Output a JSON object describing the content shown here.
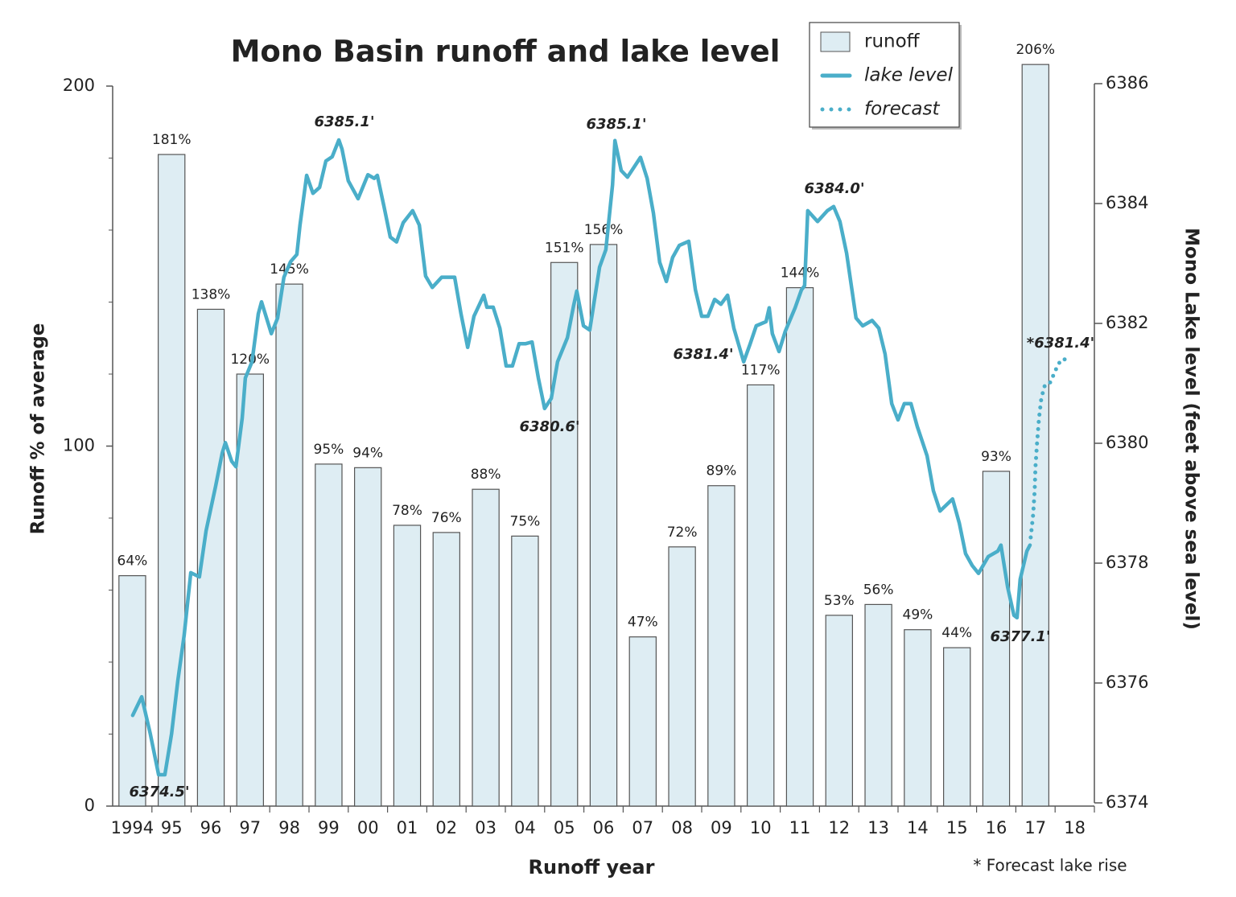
{
  "chart_data": {
    "type": "bar",
    "title": "Mono Basin runoff and lake level",
    "xlabel": "Runoff year",
    "ylabel": "Runoff % of average",
    "y2label": "Mono Lake level (feet above sea level)",
    "footnote": "* Forecast lake rise",
    "categories": [
      "1994",
      "95",
      "96",
      "97",
      "98",
      "99",
      "00",
      "01",
      "02",
      "03",
      "04",
      "05",
      "06",
      "07",
      "08",
      "09",
      "10",
      "11",
      "12",
      "13",
      "14",
      "15",
      "16",
      "17",
      "18"
    ],
    "ylim": [
      0,
      200
    ],
    "yticks": [
      0,
      100,
      200
    ],
    "yminorticks": [
      20,
      40,
      60,
      80,
      120,
      140,
      160,
      180
    ],
    "y2lim": [
      6374,
      6386
    ],
    "y2ticks": [
      6374,
      6376,
      6378,
      6380,
      6382,
      6384,
      6386
    ],
    "xlim": [
      1993.5,
      2018.5
    ],
    "series": [
      {
        "name": "runoff",
        "type": "bar",
        "color": "#deedf3",
        "values": [
          64,
          181,
          138,
          120,
          145,
          95,
          94,
          78,
          76,
          88,
          75,
          151,
          156,
          47,
          72,
          89,
          117,
          144,
          53,
          56,
          49,
          44,
          93,
          206,
          null
        ],
        "value_labels": [
          "64%",
          "181%",
          "138%",
          "120%",
          "145%",
          "95%",
          "94%",
          "78%",
          "76%",
          "88%",
          "75%",
          "151%",
          "156%",
          "47%",
          "72%",
          "89%",
          "117%",
          "144%",
          "53%",
          "56%",
          "49%",
          "44%",
          "93%",
          "206%",
          null
        ]
      },
      {
        "name": "lake level",
        "type": "line",
        "axis": "y2",
        "color": "#4aaec9",
        "x": [
          1994.01,
          1994.24,
          1994.46,
          1994.67,
          1994.83,
          1995.0,
          1995.16,
          1995.32,
          1995.49,
          1995.71,
          1995.88,
          1996.12,
          1996.29,
          1996.37,
          1996.53,
          1996.64,
          1996.8,
          1996.88,
          1997.05,
          1997.21,
          1997.29,
          1997.54,
          1997.7,
          1997.86,
          1998.03,
          1998.19,
          1998.27,
          1998.44,
          1998.6,
          1998.77,
          1998.93,
          1999.09,
          1999.26,
          1999.34,
          1999.5,
          1999.75,
          2000.0,
          2000.16,
          2000.24,
          2000.41,
          2000.57,
          2000.73,
          2000.9,
          2001.14,
          2001.31,
          2001.47,
          2001.64,
          2001.88,
          2002.21,
          2002.37,
          2002.54,
          2002.7,
          2002.95,
          2003.03,
          2003.19,
          2003.36,
          2003.52,
          2003.68,
          2003.85,
          2004.01,
          2004.18,
          2004.34,
          2004.5,
          2004.67,
          2004.83,
          2005.08,
          2005.24,
          2005.32,
          2005.49,
          2005.65,
          2005.9,
          2006.06,
          2006.23,
          2006.29,
          2006.45,
          2006.61,
          2006.94,
          2007.11,
          2007.27,
          2007.43,
          2007.6,
          2007.76,
          2007.93,
          2008.17,
          2008.34,
          2008.5,
          2008.66,
          2008.83,
          2008.99,
          2009.16,
          2009.32,
          2009.57,
          2009.73,
          2009.89,
          2010.14,
          2010.22,
          2010.3,
          2010.47,
          2010.63,
          2010.88,
          2011.04,
          2011.12,
          2011.2,
          2011.45,
          2011.7,
          2011.86,
          2012.02,
          2012.19,
          2012.43,
          2012.6,
          2012.84,
          2013.01,
          2013.17,
          2013.34,
          2013.5,
          2013.66,
          2013.83,
          2013.99,
          2014.24,
          2014.4,
          2014.57,
          2014.89,
          2015.06,
          2015.22,
          2015.39,
          2015.55,
          2015.8,
          2016.04,
          2016.12,
          2016.29,
          2016.45,
          2016.53,
          2016.61,
          2016.78,
          2016.86
        ],
        "values": [
          6375.46,
          6375.77,
          6375.15,
          6374.47,
          6374.47,
          6375.15,
          6376.04,
          6376.79,
          6377.84,
          6377.77,
          6378.54,
          6379.28,
          6379.84,
          6380.01,
          6379.7,
          6379.61,
          6380.42,
          6381.09,
          6381.36,
          6382.16,
          6382.36,
          6381.83,
          6382.09,
          6382.77,
          6383.03,
          6383.15,
          6383.64,
          6384.47,
          6384.17,
          6384.27,
          6384.71,
          6384.78,
          6385.06,
          6384.91,
          6384.38,
          6384.08,
          6384.48,
          6384.42,
          6384.47,
          6383.95,
          6383.44,
          6383.36,
          6383.68,
          6383.88,
          6383.64,
          6382.79,
          6382.6,
          6382.77,
          6382.77,
          6382.16,
          6381.6,
          6382.12,
          6382.47,
          6382.27,
          6382.27,
          6381.92,
          6381.29,
          6381.29,
          6381.66,
          6381.66,
          6381.69,
          6381.09,
          6380.58,
          6380.75,
          6381.36,
          6381.76,
          6382.3,
          6382.54,
          6381.96,
          6381.89,
          6382.94,
          6383.23,
          6384.31,
          6385.05,
          6384.55,
          6384.44,
          6384.77,
          6384.42,
          6383.84,
          6383.02,
          6382.7,
          6383.1,
          6383.3,
          6383.37,
          6382.56,
          6382.12,
          6382.12,
          6382.4,
          6382.32,
          6382.47,
          6381.92,
          6381.36,
          6381.65,
          6381.96,
          6382.03,
          6382.26,
          6381.83,
          6381.53,
          6381.87,
          6382.26,
          6382.56,
          6382.63,
          6383.88,
          6383.7,
          6383.88,
          6383.95,
          6383.7,
          6383.17,
          6382.09,
          6381.96,
          6382.05,
          6381.92,
          6381.49,
          6380.66,
          6380.39,
          6380.66,
          6380.66,
          6380.28,
          6379.79,
          6379.21,
          6378.87,
          6379.07,
          6378.67,
          6378.16,
          6377.96,
          6377.83,
          6378.11,
          6378.2,
          6378.3,
          6377.6,
          6377.13,
          6377.09,
          6377.73,
          6378.2,
          6378.3
        ]
      },
      {
        "name": "forecast",
        "type": "line",
        "style": "dotted",
        "axis": "y2",
        "color": "#4aaec9",
        "x": [
          2016.88,
          2016.94,
          2016.98,
          2017.0,
          2017.04,
          2017.09,
          2017.15,
          2017.23,
          2017.35,
          2017.46,
          2017.56,
          2017.66,
          2017.76
        ],
        "values": [
          6378.43,
          6378.81,
          6379.21,
          6379.61,
          6380.01,
          6380.42,
          6380.75,
          6380.95,
          6380.98,
          6381.14,
          6381.29,
          6381.4,
          6381.4
        ]
      }
    ],
    "annotations": [
      "6385.1'",
      "6385.1'",
      "6384.0'",
      "6381.4'",
      "6380.6'",
      "6374.5'",
      "6377.1'",
      "*6381.4'"
    ]
  }
}
